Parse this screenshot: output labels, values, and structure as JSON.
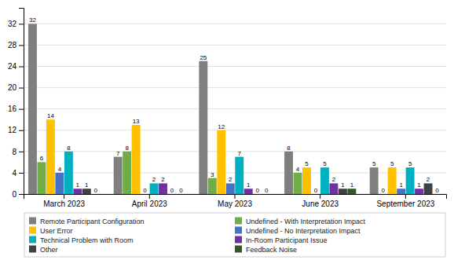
{
  "chart_data": {
    "type": "bar",
    "categories": [
      "March 2023",
      "April 2023",
      "May 2023",
      "June 2023",
      "September 2023"
    ],
    "series": [
      {
        "name": "Remote Participant Configuration",
        "color": "#7f7f7f",
        "values": [
          32,
          7,
          25,
          8,
          5
        ]
      },
      {
        "name": "Undefined - With Interpretation Impact",
        "color": "#70ad47",
        "values": [
          6,
          8,
          3,
          4,
          0
        ]
      },
      {
        "name": "User Error",
        "color": "#ffc000",
        "values": [
          14,
          13,
          12,
          5,
          5
        ]
      },
      {
        "name": "Undefined - No Interpretation Impact",
        "color": "#4472c4",
        "values": [
          4,
          0,
          2,
          0,
          1
        ]
      },
      {
        "name": "Technical Problem with Room",
        "color": "#00b0c0",
        "values": [
          8,
          2,
          7,
          5,
          5
        ]
      },
      {
        "name": "In-Room Participant Issue",
        "color": "#7030a0",
        "values": [
          1,
          2,
          1,
          2,
          1
        ]
      },
      {
        "name": "Other",
        "color": "#404040",
        "values": [
          1,
          0,
          0,
          1,
          2
        ]
      },
      {
        "name": "Feedback Noise",
        "color": "#375623",
        "values": [
          0,
          0,
          0,
          1,
          0
        ]
      }
    ],
    "ylim": [
      0,
      35
    ],
    "yticks": [
      0,
      4,
      8,
      12,
      16,
      20,
      24,
      28,
      32
    ],
    "grid": true,
    "data_labels": true,
    "legend": "bottom"
  }
}
